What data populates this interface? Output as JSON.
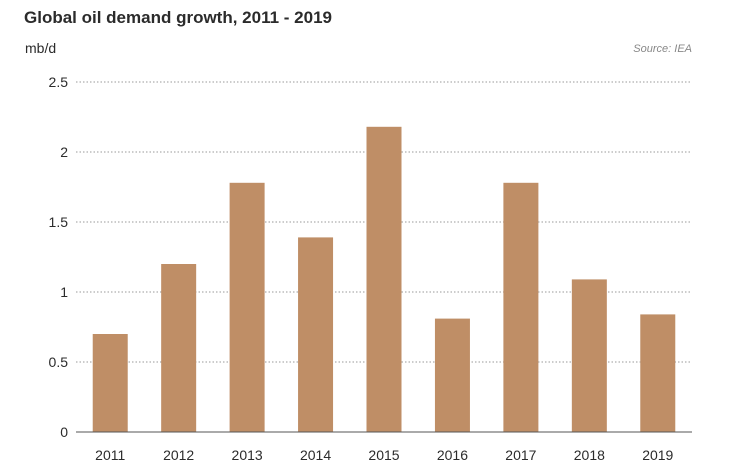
{
  "chart_data": {
    "type": "bar",
    "title": "Global oil demand growth, 2011 - 2019",
    "ylabel": "mb/d",
    "xlabel": "",
    "source": "Source: IEA",
    "categories": [
      "2011",
      "2012",
      "2013",
      "2014",
      "2015",
      "2016",
      "2017",
      "2018",
      "2019"
    ],
    "values": [
      0.7,
      1.2,
      1.78,
      1.39,
      2.18,
      0.81,
      1.78,
      1.09,
      0.84
    ],
    "ylim": [
      0,
      2.5
    ],
    "yticks": [
      0,
      0.5,
      1,
      1.5,
      2,
      2.5
    ],
    "ytick_labels": [
      "0",
      "0.5",
      "1",
      "1.5",
      "2",
      "2.5"
    ],
    "grid": true,
    "grid_style": "dotted",
    "bar_color": "#bf8e66",
    "gridline_color": "#9a9a9a",
    "axis_color": "#555555"
  }
}
